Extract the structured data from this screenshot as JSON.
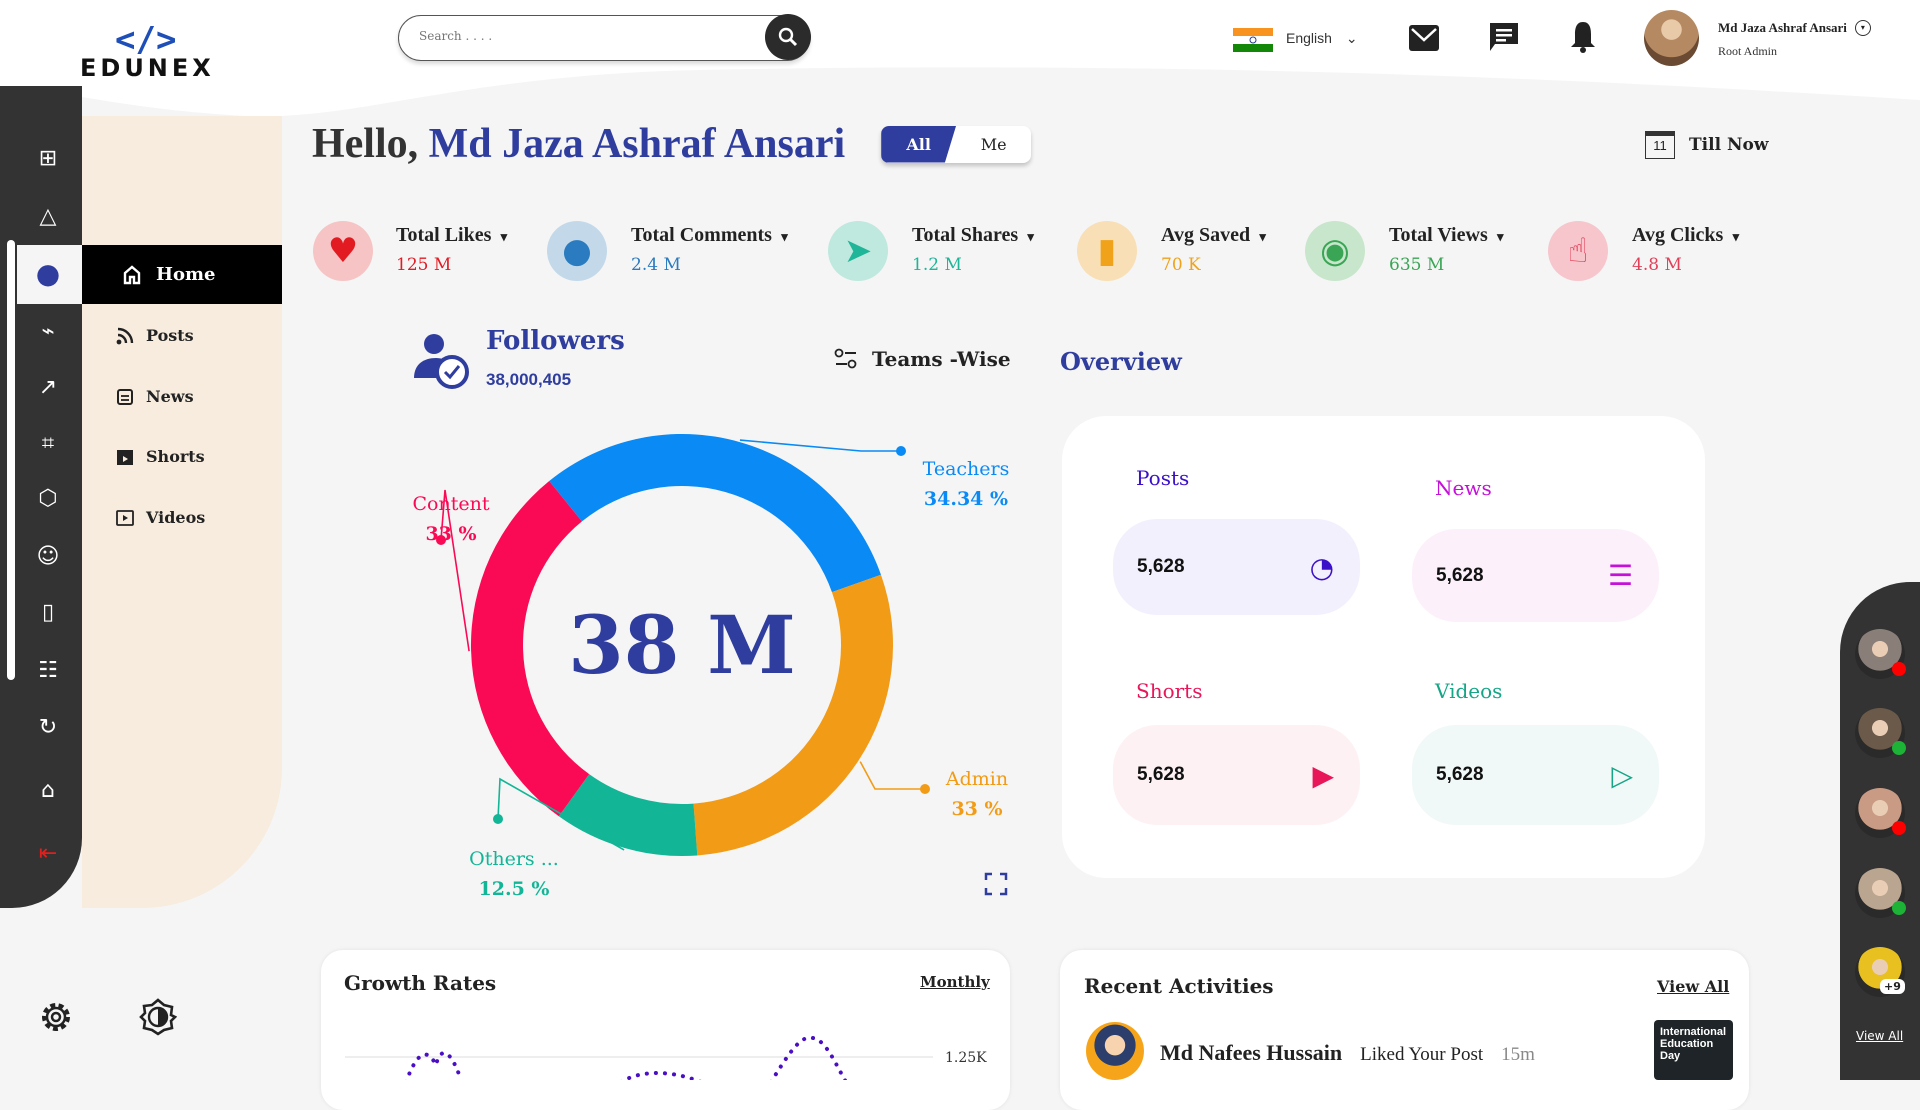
{
  "brand": {
    "logo_mark": "</>",
    "logo_text": "EDUNEX"
  },
  "search": {
    "placeholder": "Search . . . ."
  },
  "header": {
    "language": "English",
    "user_name": "Md Jaza Ashraf Ansari",
    "user_role": "Root Admin"
  },
  "greeting": {
    "prefix": "Hello,",
    "name": "Md Jaza Ashraf Ansari"
  },
  "toggle": {
    "all": "All",
    "me": "Me",
    "selected": "All"
  },
  "date_filter": {
    "label": "Till Now",
    "calendar_day": "11"
  },
  "sidebar": {
    "icons": [
      "dashboard-icon",
      "shapes-icon",
      "globe-icon",
      "cart-icon",
      "analytics-icon",
      "megaphone-icon",
      "hexagon-settings-icon",
      "user-key-icon",
      "tablet-icon",
      "team-icon",
      "support-24-7-icon",
      "alarm-add-icon",
      "logout-icon"
    ],
    "active": "globe-icon"
  },
  "menu": {
    "items": [
      {
        "label": "Home",
        "icon": "home-icon",
        "active": true
      },
      {
        "label": "Posts",
        "icon": "rss-icon"
      },
      {
        "label": "News",
        "icon": "news-icon"
      },
      {
        "label": "Shorts",
        "icon": "clapper-icon"
      },
      {
        "label": "Videos",
        "icon": "play-icon"
      }
    ]
  },
  "stats": [
    {
      "label": "Total Likes",
      "value": "125 M",
      "icon": "heart-icon",
      "color": "#e21b23",
      "bg": "#f6c4c4"
    },
    {
      "label": "Total Comments",
      "value": "2.4 M",
      "icon": "comment-icon",
      "color": "#2a7bbf",
      "bg": "#c3d9ea"
    },
    {
      "label": "Total Shares",
      "value": "1.2 M",
      "icon": "paper-plane-icon",
      "color": "#1fb598",
      "bg": "#bfe8de"
    },
    {
      "label": "Avg Saved",
      "value": "70 K",
      "icon": "bookmark-icon",
      "color": "#f0a21a",
      "bg": "#f8dfb5"
    },
    {
      "label": "Total Views",
      "value": "635 M",
      "icon": "eye-icon",
      "color": "#3aa655",
      "bg": "#c8e6cc"
    },
    {
      "label": "Avg Clicks",
      "value": "4.8 M",
      "icon": "click-hand-icon",
      "color": "#e23f58",
      "bg": "#f6c6cc"
    }
  ],
  "followers": {
    "title": "Followers",
    "count": "38,000,405",
    "filter": "Teams -Wise"
  },
  "chart_data": [
    {
      "type": "pie",
      "donut": true,
      "center_label": "38 M",
      "categories": [
        "Teachers",
        "Admin",
        "Others ...",
        "Content"
      ],
      "values": [
        34.34,
        33,
        12.5,
        33
      ],
      "labels": [
        "34.34 %",
        "33 %",
        "12.5 %",
        "33 %"
      ],
      "colors": [
        "#0a8af5",
        "#f29b16",
        "#12b596",
        "#fa0a55"
      ]
    },
    {
      "type": "line",
      "title": "Growth Rates",
      "period": "Monthly",
      "yticks": [
        "1.25K"
      ],
      "line_style": "dotted",
      "color": "#4a0fc4"
    }
  ],
  "overview": {
    "title": "Overview",
    "items": [
      {
        "label": "Posts",
        "value": "5,628",
        "icon": "rss-icon",
        "color": "#3a10c8",
        "bg": "#f3f0fd"
      },
      {
        "label": "News",
        "value": "5,628",
        "icon": "news-icon",
        "color": "#c410d8",
        "bg": "#fcf0fb"
      },
      {
        "label": "Shorts",
        "value": "5,628",
        "icon": "clapper-icon",
        "color": "#e8175a",
        "bg": "#fdf1f4"
      },
      {
        "label": "Videos",
        "value": "5,628",
        "icon": "play-icon",
        "color": "#16a586",
        "bg": "#f0f9f7"
      }
    ]
  },
  "growth": {
    "title": "Growth Rates",
    "period": "Monthly",
    "ytick": "1.25K"
  },
  "activities": {
    "title": "Recent Activities",
    "view_all": "View All",
    "items": [
      {
        "name": "Md Nafees Hussain",
        "action": "Liked Your Post",
        "time": "15m",
        "thumb_text": "International Education Day"
      }
    ]
  },
  "online_users": {
    "statuses": [
      "busy",
      "online",
      "busy",
      "online"
    ],
    "more": "+9",
    "view_all": "View All"
  }
}
